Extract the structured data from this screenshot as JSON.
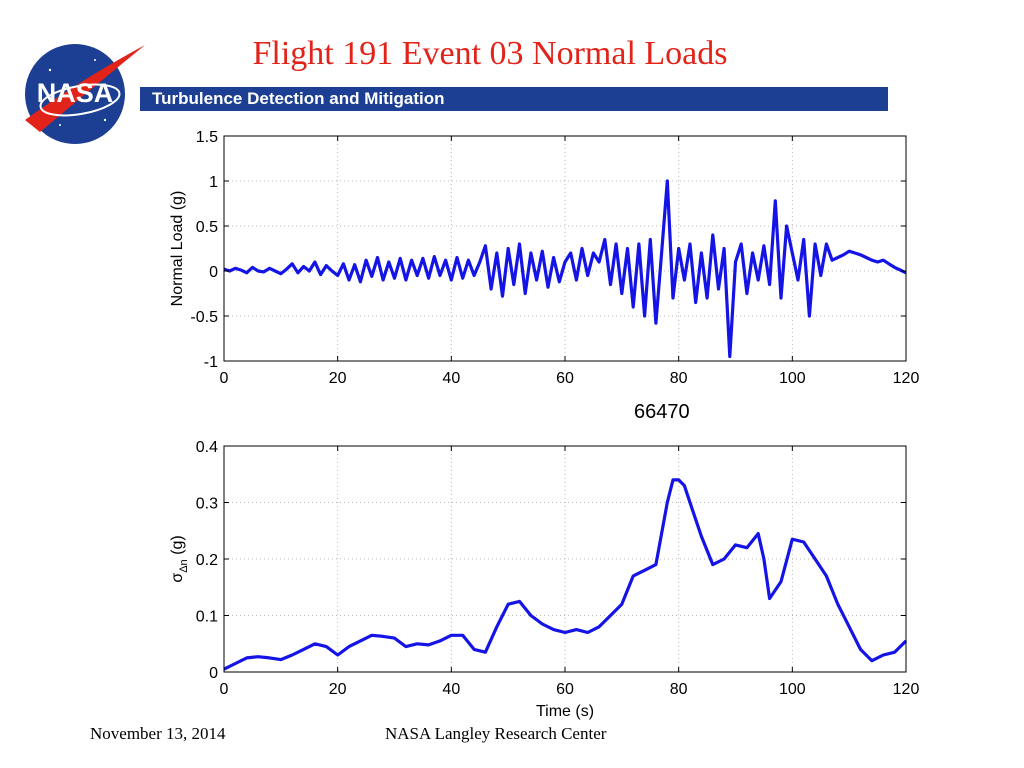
{
  "slide": {
    "title": "Flight 191 Event 03 Normal Loads",
    "subtitle": "Turbulence Detection and Mitigation",
    "logo_text": "NASA",
    "annotation": "66470",
    "footer_date": "November 13, 2014",
    "footer_org": "NASA Langley Research Center"
  },
  "colors": {
    "series": "#1414e6",
    "title": "#e2231a",
    "banner": "#1c3f94"
  },
  "chart_data": [
    {
      "type": "line",
      "title": "",
      "xlabel": "",
      "ylabel": "Normal Load (g)",
      "xlim": [
        0,
        120
      ],
      "ylim": [
        -1,
        1.5
      ],
      "xticks": [
        0,
        20,
        40,
        60,
        80,
        100,
        120
      ],
      "yticks": [
        -1,
        -0.5,
        0,
        0.5,
        1,
        1.5
      ],
      "xtick_labels": [
        "0",
        "20",
        "40",
        "60",
        "80",
        "100",
        "120"
      ],
      "ytick_labels": [
        "-1",
        "-0.5",
        "0",
        "0.5",
        "1",
        "1.5"
      ],
      "grid": true,
      "series": [
        {
          "color": "#1414e6",
          "x": [
            0,
            1,
            2,
            3,
            4,
            5,
            6,
            7,
            8,
            9,
            10,
            11,
            12,
            13,
            14,
            15,
            16,
            17,
            18,
            19,
            20,
            21,
            22,
            23,
            24,
            25,
            26,
            27,
            28,
            29,
            30,
            31,
            32,
            33,
            34,
            35,
            36,
            37,
            38,
            39,
            40,
            41,
            42,
            43,
            44,
            45,
            46,
            47,
            48,
            49,
            50,
            51,
            52,
            53,
            54,
            55,
            56,
            57,
            58,
            59,
            60,
            61,
            62,
            63,
            64,
            65,
            66,
            67,
            68,
            69,
            70,
            71,
            72,
            73,
            74,
            75,
            76,
            77,
            78,
            79,
            80,
            81,
            82,
            83,
            84,
            85,
            86,
            87,
            88,
            89,
            90,
            91,
            92,
            93,
            94,
            95,
            96,
            97,
            98,
            99,
            100,
            101,
            102,
            103,
            104,
            105,
            106,
            107,
            108,
            109,
            110,
            111,
            112,
            113,
            114,
            115,
            116,
            117,
            118,
            119,
            120
          ],
          "y": [
            0.02,
            0.0,
            0.03,
            0.01,
            -0.02,
            0.04,
            0.0,
            -0.01,
            0.03,
            0.0,
            -0.03,
            0.02,
            0.08,
            -0.02,
            0.05,
            0.0,
            0.1,
            -0.04,
            0.06,
            0.0,
            -0.05,
            0.08,
            -0.1,
            0.07,
            -0.12,
            0.12,
            -0.06,
            0.15,
            -0.1,
            0.1,
            -0.08,
            0.14,
            -0.1,
            0.12,
            -0.05,
            0.14,
            -0.08,
            0.16,
            -0.05,
            0.12,
            -0.1,
            0.15,
            -0.08,
            0.12,
            -0.05,
            0.1,
            0.28,
            -0.2,
            0.2,
            -0.28,
            0.25,
            -0.15,
            0.3,
            -0.25,
            0.2,
            -0.1,
            0.22,
            -0.18,
            0.15,
            -0.12,
            0.1,
            0.2,
            -0.1,
            0.25,
            -0.05,
            0.2,
            0.1,
            0.35,
            -0.15,
            0.3,
            -0.25,
            0.25,
            -0.4,
            0.3,
            -0.5,
            0.35,
            -0.58,
            0.2,
            1.0,
            -0.3,
            0.25,
            -0.1,
            0.3,
            -0.35,
            0.2,
            -0.3,
            0.4,
            -0.2,
            0.25,
            -0.95,
            0.1,
            0.3,
            -0.25,
            0.2,
            -0.1,
            0.28,
            -0.15,
            0.78,
            -0.3,
            0.5,
            0.2,
            -0.1,
            0.35,
            -0.5,
            0.3,
            -0.05,
            0.3,
            0.12,
            0.15,
            0.18,
            0.22,
            0.2,
            0.18,
            0.15,
            0.12,
            0.1,
            0.12,
            0.08,
            0.04,
            0.01,
            -0.02
          ]
        }
      ]
    },
    {
      "type": "line",
      "title": "",
      "xlabel": "Time (s)",
      "ylabel": "σ",
      "ylabel_sub": "Δn",
      "ylabel_unit": "(g)",
      "xlim": [
        0,
        120
      ],
      "ylim": [
        0,
        0.4
      ],
      "xticks": [
        0,
        20,
        40,
        60,
        80,
        100,
        120
      ],
      "yticks": [
        0,
        0.1,
        0.2,
        0.3,
        0.4
      ],
      "xtick_labels": [
        "0",
        "20",
        "40",
        "60",
        "80",
        "100",
        "120"
      ],
      "ytick_labels": [
        "0",
        "0.1",
        "0.2",
        "0.3",
        "0.4"
      ],
      "grid": true,
      "series": [
        {
          "color": "#1414e6",
          "x": [
            0,
            2,
            4,
            6,
            8,
            10,
            12,
            14,
            16,
            18,
            20,
            22,
            24,
            26,
            28,
            30,
            32,
            34,
            36,
            38,
            40,
            42,
            44,
            46,
            48,
            50,
            52,
            54,
            56,
            58,
            60,
            62,
            64,
            66,
            68,
            70,
            72,
            74,
            76,
            78,
            79,
            80,
            81,
            82,
            84,
            86,
            88,
            90,
            92,
            94,
            95,
            96,
            98,
            100,
            102,
            104,
            106,
            108,
            110,
            112,
            114,
            116,
            118,
            120
          ],
          "y": [
            0.005,
            0.015,
            0.025,
            0.027,
            0.025,
            0.022,
            0.03,
            0.04,
            0.05,
            0.045,
            0.03,
            0.045,
            0.055,
            0.065,
            0.063,
            0.06,
            0.045,
            0.05,
            0.048,
            0.055,
            0.065,
            0.065,
            0.04,
            0.035,
            0.08,
            0.12,
            0.125,
            0.1,
            0.085,
            0.075,
            0.07,
            0.075,
            0.07,
            0.08,
            0.1,
            0.12,
            0.17,
            0.18,
            0.19,
            0.3,
            0.34,
            0.34,
            0.33,
            0.3,
            0.24,
            0.19,
            0.2,
            0.225,
            0.22,
            0.245,
            0.2,
            0.13,
            0.16,
            0.235,
            0.23,
            0.2,
            0.17,
            0.12,
            0.08,
            0.04,
            0.02,
            0.03,
            0.035,
            0.055
          ]
        }
      ]
    }
  ]
}
